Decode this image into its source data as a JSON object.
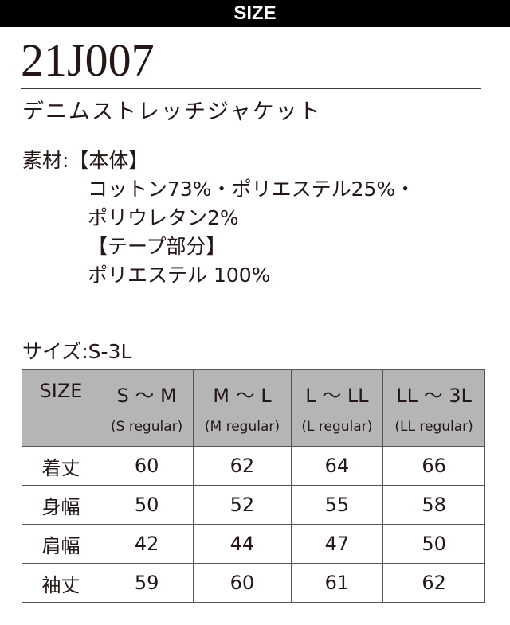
{
  "banner": "SIZE",
  "product_code": "21J007",
  "product_name": "デニムストレッチジャケット",
  "material": {
    "label": "素材:【本体】",
    "lines": [
      "コットン73%・ポリエステル25%・",
      "ポリウレタン2%",
      "【テープ部分】",
      "ポリエステル 100%"
    ]
  },
  "sizes_label": "サイズ:S-3L",
  "table": {
    "corner": "SIZE",
    "columns": [
      {
        "label": "S 〜 M",
        "sub": "(S regular)"
      },
      {
        "label": "M 〜 L",
        "sub": "(M regular)"
      },
      {
        "label": "L 〜 LL",
        "sub": "(L regular)"
      },
      {
        "label": "LL 〜 3L",
        "sub": "(LL regular)"
      }
    ],
    "rows": [
      {
        "label": "着丈",
        "values": [
          "60",
          "62",
          "64",
          "66"
        ]
      },
      {
        "label": "身幅",
        "values": [
          "50",
          "52",
          "55",
          "58"
        ]
      },
      {
        "label": "肩幅",
        "values": [
          "42",
          "44",
          "47",
          "50"
        ]
      },
      {
        "label": "袖丈",
        "values": [
          "59",
          "60",
          "61",
          "62"
        ]
      }
    ]
  }
}
